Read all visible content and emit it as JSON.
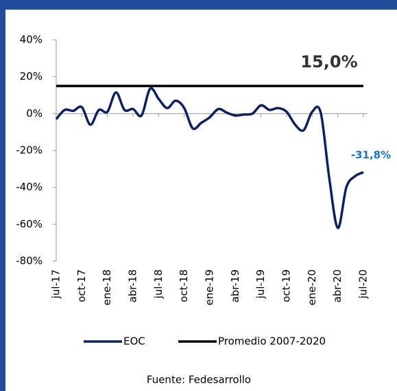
{
  "chart_data": {
    "type": "line",
    "categories": [
      "jul-17",
      null,
      null,
      "oct-17",
      null,
      null,
      "ene-18",
      null,
      null,
      "abr-18",
      null,
      null,
      "jul-18",
      null,
      null,
      "oct-18",
      null,
      null,
      "ene-19",
      null,
      null,
      "abr-19",
      null,
      null,
      "jul-19",
      null,
      null,
      "oct-19",
      null,
      null,
      "ene-20",
      null,
      null,
      "abr-20",
      null,
      null,
      "jul-20"
    ],
    "series": [
      {
        "name": "EOC",
        "color": "#0d1f5c",
        "values": [
          -3,
          2,
          1.5,
          3.5,
          -6,
          2,
          1,
          11.5,
          2,
          2.5,
          -1,
          13.5,
          8,
          3,
          7,
          3,
          -8,
          -5,
          -2,
          2.5,
          0.5,
          -1,
          -0.5,
          0,
          4.5,
          2,
          3,
          1,
          -6,
          -9,
          1,
          0.5,
          -35,
          -62,
          -40,
          -34,
          -31.8
        ]
      },
      {
        "name": "Promedio 2007-2020",
        "color": "#000000",
        "values": [
          15,
          15,
          15,
          15,
          15,
          15,
          15,
          15,
          15,
          15,
          15,
          15,
          15,
          15,
          15,
          15,
          15,
          15,
          15,
          15,
          15,
          15,
          15,
          15,
          15,
          15,
          15,
          15,
          15,
          15,
          15,
          15,
          15,
          15,
          15,
          15,
          15
        ]
      }
    ],
    "annotations": [
      {
        "text": "15,0%",
        "value": 15
      },
      {
        "text": "-31,8%",
        "value": -31.8
      }
    ],
    "ylim": [
      -80,
      40
    ],
    "yticks": [
      {
        "value": -80,
        "label": "-80%"
      },
      {
        "value": -60,
        "label": "-60%"
      },
      {
        "value": -40,
        "label": "-40%"
      },
      {
        "value": -20,
        "label": "-20%"
      },
      {
        "value": 0,
        "label": "0%"
      },
      {
        "value": 20,
        "label": "20%"
      },
      {
        "value": 40,
        "label": "40%"
      }
    ],
    "grid": false,
    "legend": "bottom",
    "source": "Fuente: Fedesarrollo"
  }
}
